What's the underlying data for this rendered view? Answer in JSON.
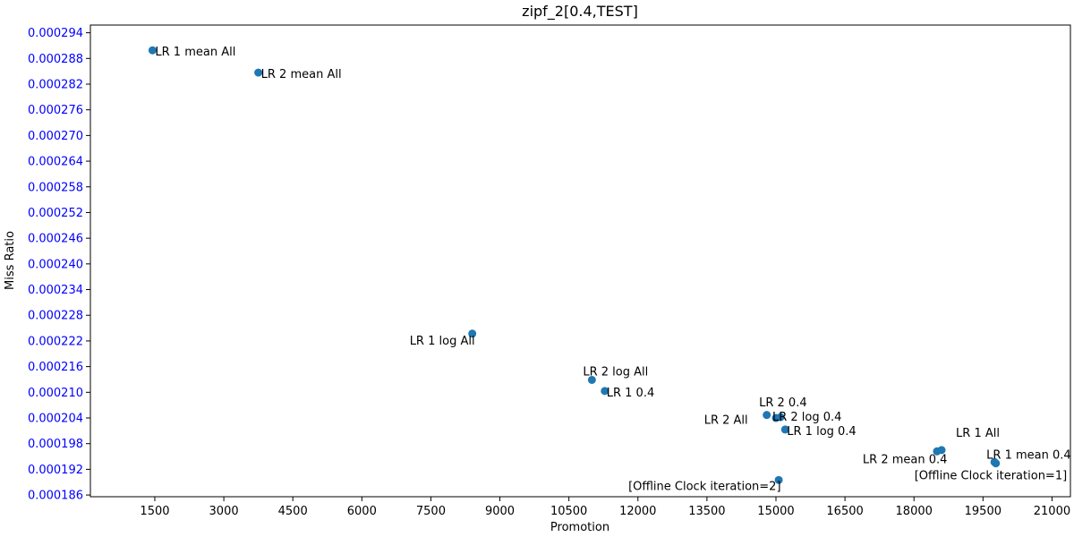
{
  "chart_data": {
    "type": "scatter",
    "title": "zipf_2[0.4,TEST]",
    "xlabel": "Promotion",
    "ylabel": "Miss Ratio",
    "xlim": [
      100,
      21400
    ],
    "ylim": [
      0.0001856,
      0.0002958
    ],
    "xticks": [
      "1500",
      "3000",
      "4500",
      "6000",
      "7500",
      "9000",
      "10500",
      "12000",
      "13500",
      "15000",
      "16500",
      "18000",
      "19500",
      "21000"
    ],
    "yticks": [
      "0.000186",
      "0.000192",
      "0.000198",
      "0.000204",
      "0.000210",
      "0.000216",
      "0.000222",
      "0.000228",
      "0.000234",
      "0.000240",
      "0.000246",
      "0.000252",
      "0.000258",
      "0.000264",
      "0.000270",
      "0.000276",
      "0.000282",
      "0.000288",
      "0.000294"
    ],
    "ytick_color": "#0000ff",
    "marker_color": "#1f77b4",
    "grid": false,
    "points": [
      {
        "label": "LR 1 mean All",
        "x": 1450,
        "y": 0.0002899
      },
      {
        "label": "LR 2 mean All",
        "x": 3750,
        "y": 0.0002847
      },
      {
        "label": "LR 1 log All",
        "x": 8400,
        "y": 0.0002237
      },
      {
        "label": "LR 2 log All",
        "x": 11000,
        "y": 0.0002129
      },
      {
        "label": "LR 1 0.4",
        "x": 11280,
        "y": 0.0002103
      },
      {
        "label": "LR 2 All",
        "x": 14800,
        "y": 0.0002047
      },
      {
        "label": "LR 2 0.4",
        "x": 15100,
        "y": 0.0002042
      },
      {
        "label": "LR 2 log 0.4",
        "x": 15000,
        "y": 0.000204
      },
      {
        "label": "LR 1 log 0.4",
        "x": 15200,
        "y": 0.0002013
      },
      {
        "label": "[Offline Clock iteration=2]",
        "x": 15060,
        "y": 0.0001895
      },
      {
        "label": "LR 1 All",
        "x": 18600,
        "y": 0.0001965
      },
      {
        "label": "LR 2 mean 0.4",
        "x": 18500,
        "y": 0.0001962
      },
      {
        "label": "LR 1 mean 0.4",
        "x": 19750,
        "y": 0.0001937
      },
      {
        "label": "[Offline Clock iteration=1]",
        "x": 19780,
        "y": 0.0001934
      }
    ]
  }
}
